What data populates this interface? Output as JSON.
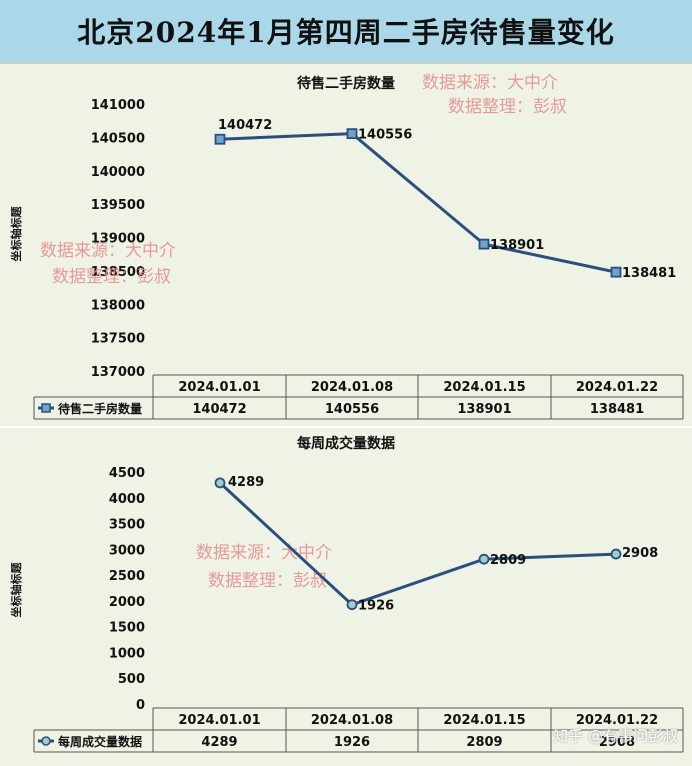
{
  "page_title": "北京2024年1月第四周二手房待售量变化",
  "watermark": {
    "line1": "数据来源：大中介",
    "line2": "数据整理：彭叔"
  },
  "footer_watermark": "知乎 @有事问彭叔",
  "chart_data": [
    {
      "type": "line",
      "title": "待售二手房数量",
      "ylabel": "坐标轴标题",
      "categories": [
        "2024.01.01",
        "2024.01.08",
        "2024.01.15",
        "2024.01.22"
      ],
      "series": [
        {
          "name": "待售二手房数量",
          "values": [
            140472,
            140556,
            138901,
            138481
          ]
        }
      ],
      "ylim": [
        137000,
        141000
      ],
      "yticks": [
        141000,
        140500,
        140000,
        139500,
        139000,
        138500,
        138000,
        137500,
        137000
      ],
      "grid": false,
      "legend": "data-table",
      "line_color": "#2c4e7e",
      "marker": "square"
    },
    {
      "type": "line",
      "title": "每周成交量数据",
      "ylabel": "坐标轴标题",
      "categories": [
        "2024.01.01",
        "2024.01.08",
        "2024.01.15",
        "2024.01.22"
      ],
      "series": [
        {
          "name": "每周成交量数据",
          "values": [
            4289,
            1926,
            2809,
            2908
          ]
        }
      ],
      "ylim": [
        0,
        4500
      ],
      "yticks": [
        4500,
        4000,
        3500,
        3000,
        2500,
        2000,
        1500,
        1000,
        500,
        0
      ],
      "grid": false,
      "legend": "data-table",
      "line_color": "#2c4e7e",
      "marker": "circle"
    }
  ]
}
